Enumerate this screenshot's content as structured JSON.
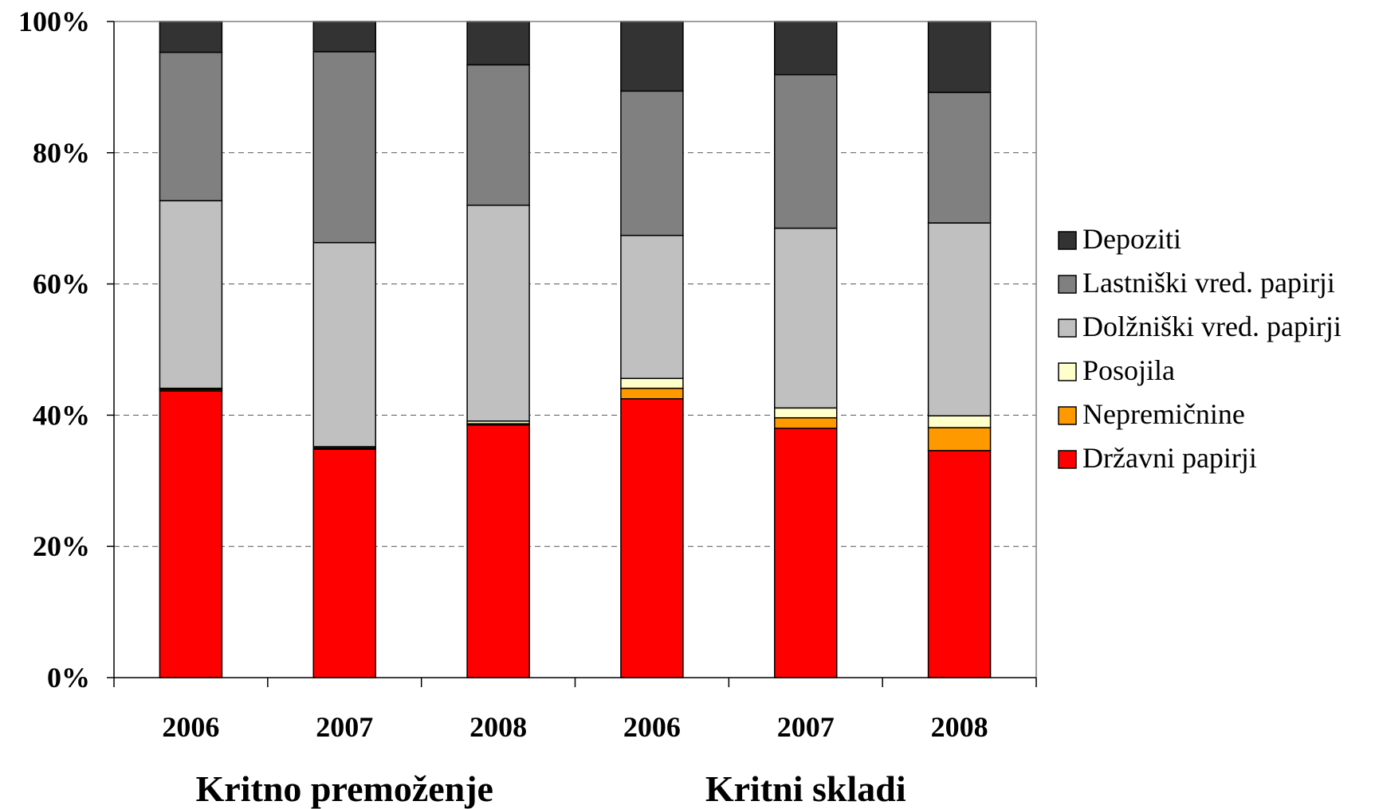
{
  "chart_data": {
    "type": "bar",
    "stacked": true,
    "percent_stacked": true,
    "categories": [
      "2006",
      "2007",
      "2008",
      "2006",
      "2007",
      "2008"
    ],
    "groups": [
      {
        "label": "Kritno premoženje",
        "categories": [
          0,
          1,
          2
        ]
      },
      {
        "label": "Kritni skladi",
        "categories": [
          3,
          4,
          5
        ]
      }
    ],
    "series": [
      {
        "name": "Državni papirji",
        "color": "#ff0000",
        "values": [
          43.7,
          34.8,
          38.5,
          42.5,
          38.0,
          34.6
        ]
      },
      {
        "name": "Nepremičnine",
        "color": "#ff9900",
        "values": [
          0.2,
          0.2,
          0.2,
          1.6,
          1.6,
          3.5
        ]
      },
      {
        "name": "Posojila",
        "color": "#ffffcc",
        "values": [
          0.2,
          0.2,
          0.4,
          1.5,
          1.5,
          1.8
        ]
      },
      {
        "name": "Dolžniški vred. papirji",
        "color": "#c0c0c0",
        "values": [
          28.6,
          31.1,
          32.9,
          21.8,
          27.4,
          29.4
        ]
      },
      {
        "name": "Lastniški vred. papirji",
        "color": "#808080",
        "values": [
          22.6,
          29.1,
          21.4,
          22.0,
          23.4,
          19.9
        ]
      },
      {
        "name": "Depoziti",
        "color": "#333333",
        "values": [
          4.7,
          4.6,
          6.6,
          10.6,
          8.1,
          10.8
        ]
      }
    ],
    "yticks": [
      "0%",
      "20%",
      "40%",
      "60%",
      "80%",
      "100%"
    ],
    "ylim": [
      0,
      100
    ],
    "grid": "dashed horizontal",
    "legend_position": "right",
    "legend_order": [
      "Depoziti",
      "Lastniški vred. papirji",
      "Dolžniški vred. papirji",
      "Posojila",
      "Nepremičnine",
      "Državni papirji"
    ]
  }
}
